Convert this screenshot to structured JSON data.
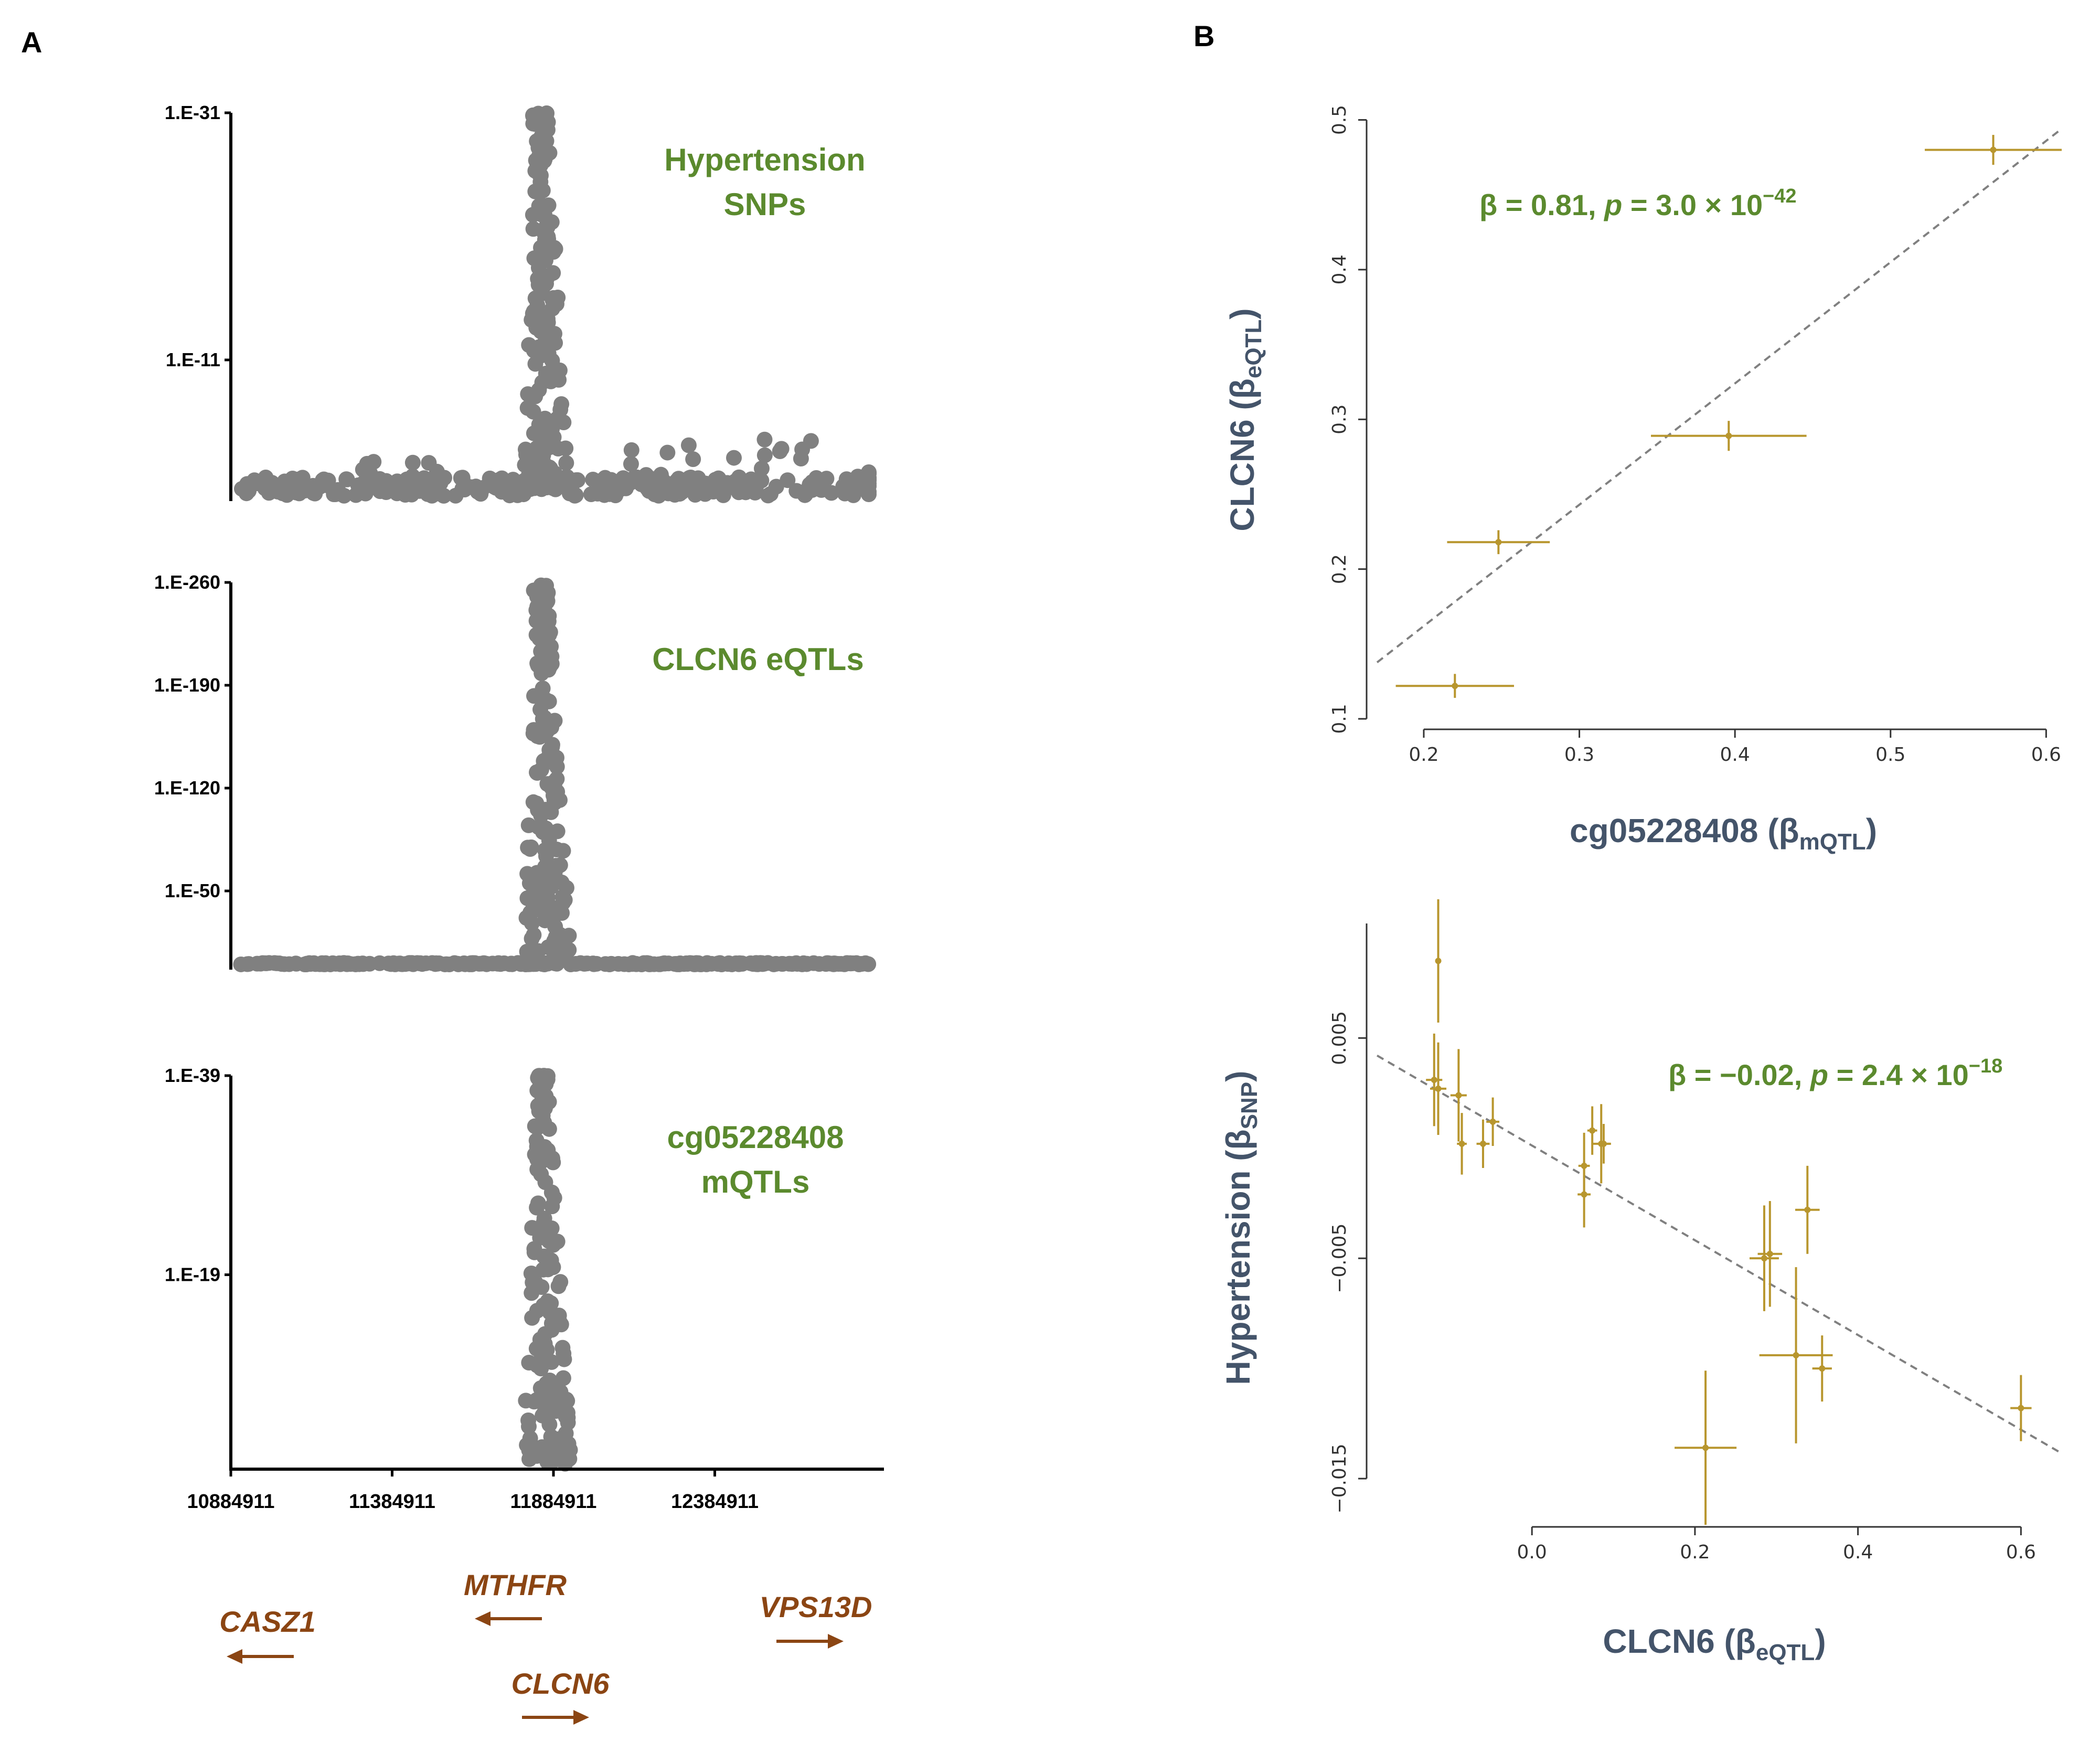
{
  "panels": {
    "a_label": "A",
    "b_label": "B"
  },
  "colors": {
    "points": "#808080",
    "green_text": "#5b8a2e",
    "gene_text": "#8b4513",
    "mr_marks": "#b8962e",
    "axis_title": "#44546a"
  },
  "panel_a": {
    "x_ticks": [
      "10884911",
      "11384911",
      "11884911",
      "12384911"
    ],
    "x_positions": [
      10884911,
      11384911,
      11884911,
      12384911
    ],
    "x_range": [
      10884911,
      12884911
    ],
    "peak_position": 11884911,
    "tracks": [
      {
        "label_lines": [
          "Hypertension",
          "SNPs"
        ],
        "y_ticks": [
          "1.E-31",
          "1.E-11"
        ],
        "y_tick_log10": [
          31,
          11
        ],
        "y_log10_range": [
          0,
          31
        ],
        "peak_log10": 31,
        "baseline_log10": 1.5,
        "background_bumps": [
          [
            11410000,
            3.2
          ],
          [
            12190000,
            4.1
          ],
          [
            12540000,
            4.6
          ],
          [
            12900000,
            2.0
          ]
        ]
      },
      {
        "label_lines": [
          "CLCN6 eQTLs"
        ],
        "y_ticks": [
          "1.E-260",
          "1.E-190",
          "1.E-120",
          "1.E-50"
        ],
        "y_tick_log10": [
          260,
          190,
          120,
          50
        ],
        "y_log10_range": [
          0,
          260
        ],
        "peak_log10": 258,
        "baseline_log10": 1,
        "background_bumps": []
      },
      {
        "label_lines": [
          "cg05228408",
          "mQTLs"
        ],
        "y_ticks": [
          "1.E-39",
          "1.E-19"
        ],
        "y_tick_log10": [
          39,
          19
        ],
        "y_log10_range": [
          0,
          39
        ],
        "peak_log10": 39,
        "baseline_log10": 1,
        "background_bumps": []
      }
    ],
    "genes": [
      {
        "name": "CASZ1",
        "direction": "left"
      },
      {
        "name": "MTHFR",
        "direction": "left"
      },
      {
        "name": "VPS13D",
        "direction": "right"
      },
      {
        "name": "CLCN6",
        "direction": "right"
      }
    ]
  },
  "chart_data": [
    {
      "type": "scatter",
      "title": "",
      "annotation": {
        "prefix": "β = 0.81, ",
        "p": "p",
        "mid": " = 3.0 × 10",
        "exp": "−42"
      },
      "xlabel": {
        "main": "cg05228408 (β",
        "sub": "mQTL",
        "end": ")"
      },
      "ylabel": {
        "main": "CLCN6 (β",
        "sub": "eQTL",
        "end": ")"
      },
      "xlim": [
        0.17,
        0.61
      ],
      "ylim": [
        0.1,
        0.51
      ],
      "x_ticks": [
        "0.2",
        "0.3",
        "0.4",
        "0.5",
        "0.6"
      ],
      "x_tick_values": [
        0.2,
        0.3,
        0.4,
        0.5,
        0.6
      ],
      "y_ticks": [
        "0.1",
        "0.2",
        "0.3",
        "0.4",
        "0.5"
      ],
      "y_tick_values": [
        0.1,
        0.2,
        0.3,
        0.4,
        0.5
      ],
      "points": [
        {
          "x": 0.22,
          "y": 0.122,
          "xerr": 0.038,
          "yerr": 0.008
        },
        {
          "x": 0.248,
          "y": 0.218,
          "xerr": 0.033,
          "yerr": 0.008
        },
        {
          "x": 0.396,
          "y": 0.289,
          "xerr": 0.05,
          "yerr": 0.01
        },
        {
          "x": 0.566,
          "y": 0.48,
          "xerr": 0.044,
          "yerr": 0.01
        }
      ],
      "fit_line": {
        "intercept": 0.0,
        "slope": 0.81
      }
    },
    {
      "type": "scatter",
      "title": "",
      "annotation": {
        "prefix": "β = −0.02, ",
        "p": "p",
        "mid": " = 2.4 × 10",
        "exp": "−18"
      },
      "xlabel": {
        "main": "CLCN6 (β",
        "sub": "eQTL",
        "end": ")"
      },
      "ylabel": {
        "main": "Hypertension (β",
        "sub": "SNP",
        "end": ")"
      },
      "xlim": [
        -0.19,
        0.65
      ],
      "ylim": [
        -0.016,
        0.0102
      ],
      "x_ticks": [
        "0.0",
        "0.2",
        "0.4",
        "0.6"
      ],
      "x_tick_values": [
        0.0,
        0.2,
        0.4,
        0.6
      ],
      "y_ticks": [
        "0.005",
        "−0.005",
        "−0.015"
      ],
      "y_tick_values": [
        0.005,
        -0.005,
        -0.015
      ],
      "points": [
        {
          "x": -0.115,
          "y": 0.0085,
          "xerr": 0.0,
          "yerr": 0.0028
        },
        {
          "x": -0.12,
          "y": 0.0031,
          "xerr": 0.01,
          "yerr": 0.0021
        },
        {
          "x": -0.115,
          "y": 0.0027,
          "xerr": 0.01,
          "yerr": 0.0021
        },
        {
          "x": -0.09,
          "y": 0.0024,
          "xerr": 0.01,
          "yerr": 0.0021
        },
        {
          "x": -0.086,
          "y": 0.0002,
          "xerr": 0.006,
          "yerr": 0.0014
        },
        {
          "x": -0.06,
          "y": 0.0002,
          "xerr": 0.008,
          "yerr": 0.0011
        },
        {
          "x": -0.048,
          "y": 0.0012,
          "xerr": 0.008,
          "yerr": 0.0011
        },
        {
          "x": 0.064,
          "y": -0.0008,
          "xerr": 0.007,
          "yerr": 0.0015
        },
        {
          "x": 0.064,
          "y": -0.0021,
          "xerr": 0.008,
          "yerr": 0.0015
        },
        {
          "x": 0.074,
          "y": 0.0008,
          "xerr": 0.006,
          "yerr": 0.0011
        },
        {
          "x": 0.085,
          "y": 0.0002,
          "xerr": 0.012,
          "yerr": 0.0018
        },
        {
          "x": 0.088,
          "y": 0.0002,
          "xerr": 0.008,
          "yerr": 0.0009
        },
        {
          "x": 0.285,
          "y": -0.005,
          "xerr": 0.018,
          "yerr": 0.0024
        },
        {
          "x": 0.292,
          "y": -0.0048,
          "xerr": 0.015,
          "yerr": 0.0024
        },
        {
          "x": 0.338,
          "y": -0.0028,
          "xerr": 0.015,
          "yerr": 0.002
        },
        {
          "x": 0.324,
          "y": -0.0094,
          "xerr": 0.045,
          "yerr": 0.004
        },
        {
          "x": 0.356,
          "y": -0.01,
          "xerr": 0.012,
          "yerr": 0.0015
        },
        {
          "x": 0.213,
          "y": -0.0136,
          "xerr": 0.038,
          "yerr": 0.0035
        },
        {
          "x": 0.6,
          "y": -0.0118,
          "xerr": 0.013,
          "yerr": 0.0015
        }
      ],
      "fit_line": {
        "intercept": 0.00012,
        "slope": -0.0215
      }
    }
  ]
}
